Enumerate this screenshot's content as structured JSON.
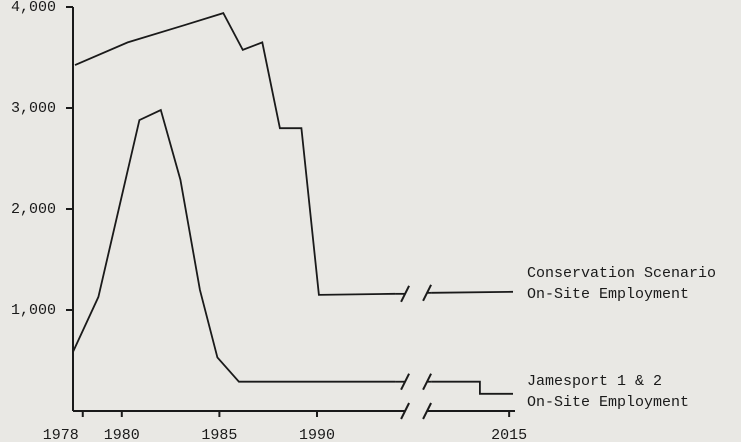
{
  "chart_data": {
    "type": "line",
    "x_break": [
      1994,
      2011
    ],
    "xlim": [
      1977.5,
      2015.3
    ],
    "xticks": [
      1978,
      1980,
      1985,
      1990,
      2015
    ],
    "ylim": [
      0,
      4000
    ],
    "yticks": [
      {
        "value": 1000,
        "label": "1,000"
      },
      {
        "value": 2000,
        "label": "2,000"
      },
      {
        "value": 3000,
        "label": "3,000"
      },
      {
        "value": 4000,
        "label": "4,000"
      }
    ],
    "series": [
      {
        "name_lines": [
          "Conservation Scenario",
          "On-Site Employment"
        ],
        "color": "#1a1a1a",
        "x": [
          1977.6,
          1980.3,
          1983.2,
          1985.2,
          1986.2,
          1987.2,
          1988.1,
          1989.2,
          1990.1,
          1994,
          null,
          2011,
          2015.2
        ],
        "values": [
          3425,
          3650,
          3820,
          3940,
          3575,
          3650,
          2800,
          2800,
          1150,
          1160,
          null,
          1170,
          1180
        ]
      },
      {
        "name_lines": [
          "Jamesport 1 & 2",
          "On-Site Employment"
        ],
        "color": "#1a1a1a",
        "x": [
          1977.5,
          1978.8,
          1980.9,
          1982,
          1983,
          1984,
          1984.9,
          1986,
          1994,
          null,
          2011,
          2013.5,
          2013.5,
          2015.2
        ],
        "values": [
          585,
          1130,
          2880,
          2980,
          2290,
          1200,
          530,
          290,
          290,
          null,
          290,
          290,
          170,
          170
        ]
      }
    ]
  }
}
